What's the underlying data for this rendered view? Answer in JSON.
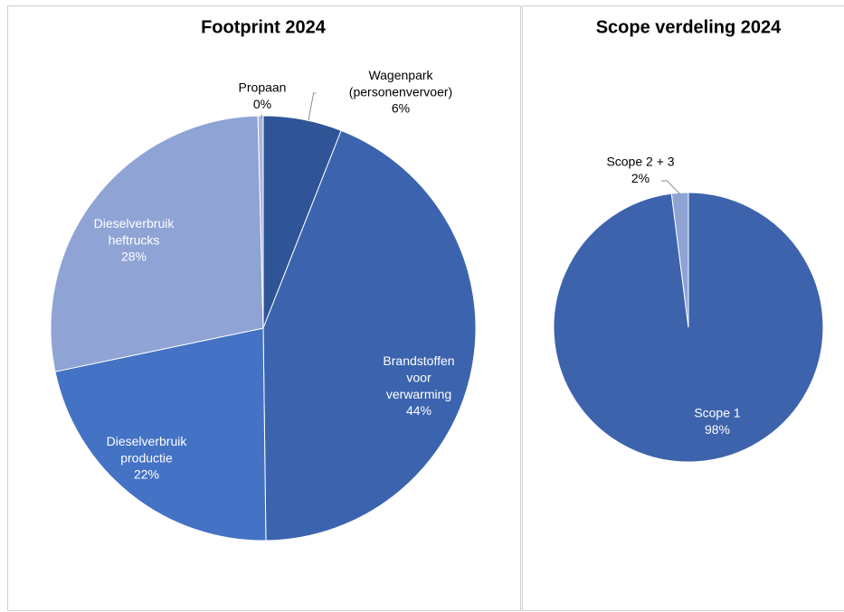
{
  "chart_data": [
    {
      "type": "pie",
      "title": "Footprint 2024",
      "categories": [
        "Wagenpark\n(personenvervoer)",
        "Brandstoffen\nvoor\nverwarming",
        "Dieselverbruik\nproductie",
        "Dieselverbruik\nheftrucks",
        "Propaan"
      ],
      "values": [
        6,
        44,
        22,
        28,
        0.4
      ],
      "value_labels": [
        "6%",
        "44%",
        "22%",
        "28%",
        "0%"
      ],
      "colors": [
        "#2f5597",
        "#3c64ae",
        "#4472c4",
        "#8fa3d5",
        "#a9b7dd"
      ]
    },
    {
      "type": "pie",
      "title": "Scope verdeling 2024",
      "categories": [
        "Scope 1",
        "Scope 2 + 3"
      ],
      "values": [
        98,
        2
      ],
      "value_labels": [
        "98%",
        "2%"
      ],
      "colors": [
        "#3e63ad",
        "#8fa3d5"
      ]
    }
  ]
}
